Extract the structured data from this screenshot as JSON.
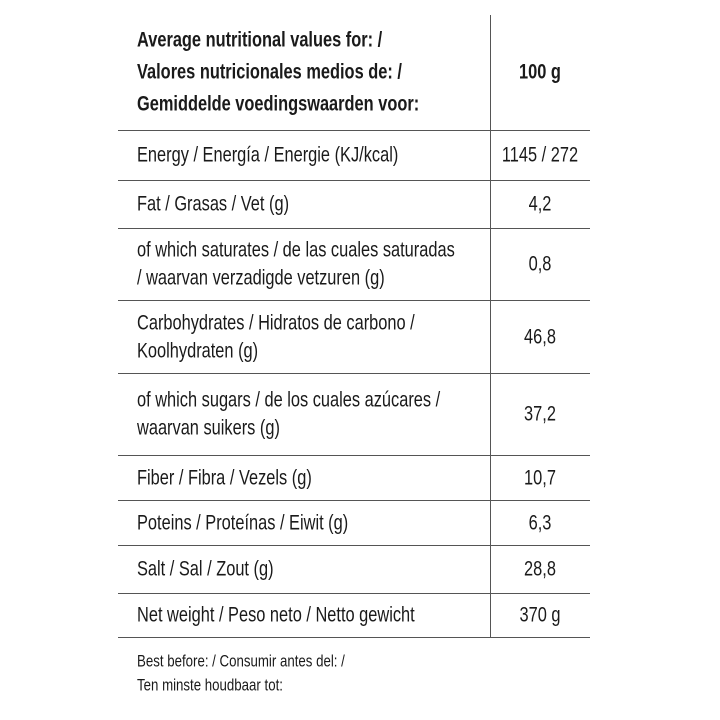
{
  "header": {
    "title": [
      "Average nutritional values for: /",
      "Valores nutricionales medios de: /",
      "Gemiddelde voedingswaarden voor:"
    ],
    "column": "100 g"
  },
  "rows": [
    {
      "label": [
        "Energy / Energía / Energie (KJ/kcal)"
      ],
      "value": "1145 / 272"
    },
    {
      "label": [
        "Fat / Grasas / Vet (g)"
      ],
      "value": "4,2"
    },
    {
      "label": [
        "of which saturates / de las cuales saturadas",
        "/ waarvan verzadigde vetzuren (g)"
      ],
      "value": "0,8"
    },
    {
      "label": [
        "Carbohydrates / Hidratos de carbono /",
        "Koolhydraten (g)"
      ],
      "value": "46,8"
    },
    {
      "label": [
        "of which sugars  / de los cuales azúcares /",
        "waarvan suikers (g)"
      ],
      "value": "37,2"
    },
    {
      "label": [
        "Fiber / Fibra / Vezels (g)"
      ],
      "value": "10,7"
    },
    {
      "label": [
        "Poteins / Proteínas / Eiwit (g)"
      ],
      "value": "6,3"
    },
    {
      "label": [
        "Salt / Sal / Zout (g)"
      ],
      "value": "28,8"
    },
    {
      "label": [
        "Net weight / Peso neto / Netto gewicht"
      ],
      "value": "370 g"
    }
  ],
  "footer": [
    "Best before: / Consumir antes del: /",
    "Ten minste houdbaar tot:"
  ]
}
